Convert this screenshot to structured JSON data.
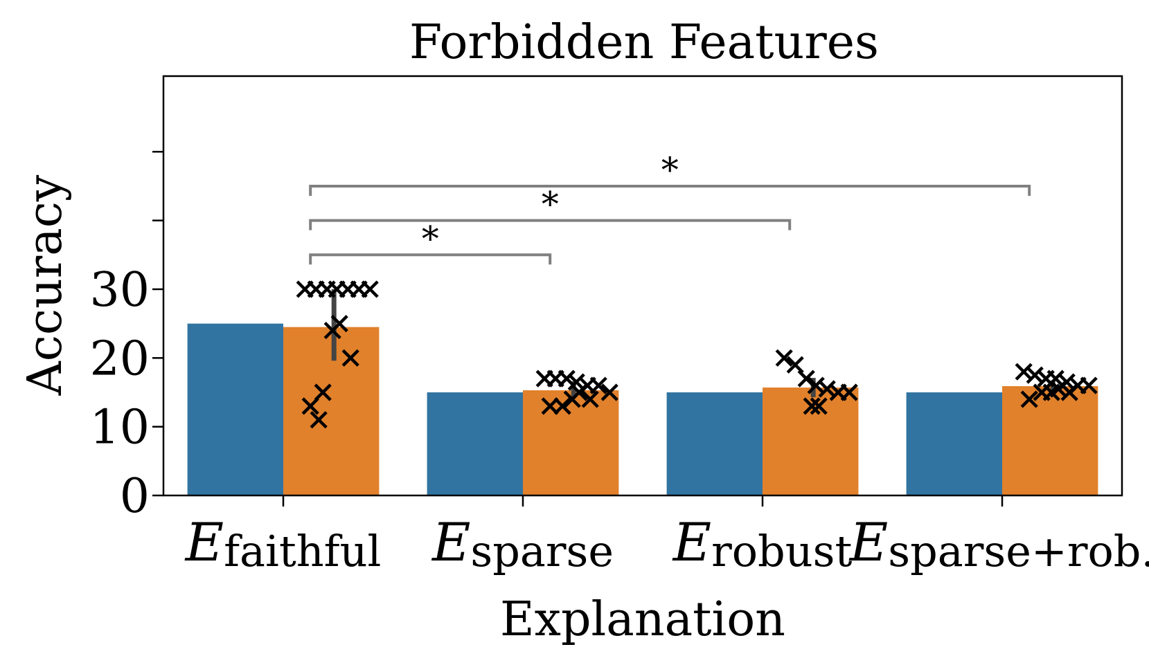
{
  "chart_data": {
    "type": "bar",
    "title": "Forbidden Features",
    "xlabel": "Explanation",
    "ylabel": "Accuracy",
    "ylim": [
      0,
      50
    ],
    "yticks": [
      0,
      10,
      20,
      30
    ],
    "yticks_unlabeled": [
      40,
      50
    ],
    "grid": false,
    "legend": "none",
    "categories": [
      {
        "main": "E",
        "sub": "faithful"
      },
      {
        "main": "E",
        "sub": "sparse"
      },
      {
        "main": "E",
        "sub": "robust"
      },
      {
        "main": "E",
        "sub": "sparse+rob."
      }
    ],
    "series": [
      {
        "color": "#3274a1",
        "values": [
          25,
          15,
          15,
          15
        ]
      },
      {
        "color": "#e1812c",
        "values": [
          24.5,
          15.3,
          15.7,
          15.9
        ],
        "error_bars": [
          [
            19.6,
            30
          ],
          [
            14.1,
            16.6
          ],
          [
            14.3,
            17.1
          ],
          [
            15.2,
            16.7
          ]
        ]
      }
    ],
    "points": [
      [
        30,
        30,
        30,
        30,
        30,
        30,
        30,
        25,
        24,
        20,
        15,
        13,
        11
      ],
      [
        17,
        17,
        17,
        16.5,
        16,
        16,
        15,
        15,
        14,
        14,
        13,
        13
      ],
      [
        20,
        19,
        17,
        16,
        15.5,
        15,
        15,
        13,
        13
      ],
      [
        18,
        17.5,
        17,
        17,
        16.5,
        16,
        16,
        15.5,
        15,
        15,
        15,
        14
      ]
    ],
    "significance": [
      {
        "from": 0,
        "to": 1,
        "label": "*"
      },
      {
        "from": 0,
        "to": 2,
        "label": "*"
      },
      {
        "from": 0,
        "to": 3,
        "label": "*"
      }
    ],
    "colors": {
      "marker": "#000000",
      "error_bar": "#444444",
      "bracket": "#808080"
    }
  }
}
